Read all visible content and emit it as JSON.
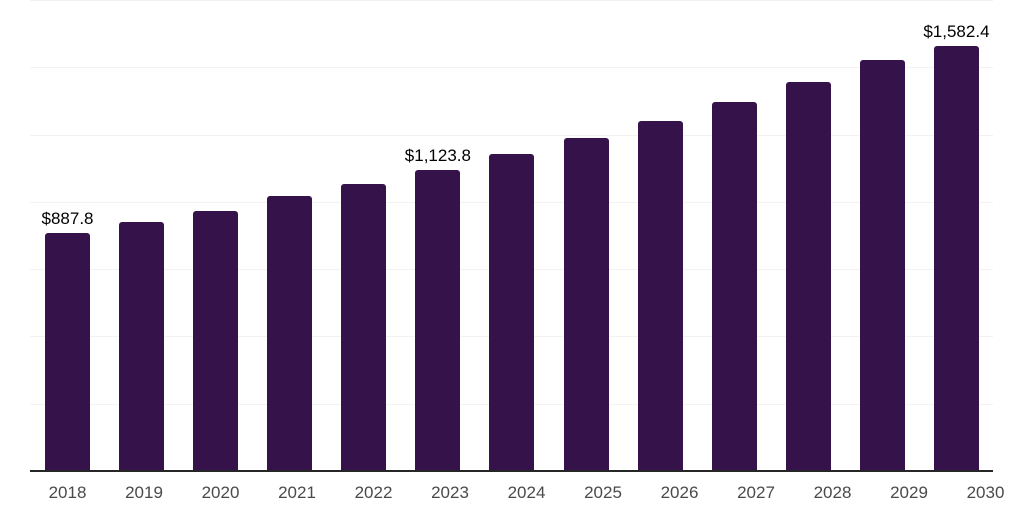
{
  "chart_data": {
    "type": "bar",
    "title": "",
    "xlabel": "",
    "ylabel": "",
    "categories": [
      "2018",
      "2019",
      "2020",
      "2021",
      "2022",
      "2023",
      "2024",
      "2025",
      "2026",
      "2027",
      "2028",
      "2029",
      "2030"
    ],
    "values": [
      887.8,
      930,
      969,
      1024,
      1071,
      1123.8,
      1180,
      1242,
      1306,
      1376,
      1450,
      1532,
      1582.4
    ],
    "value_labels": [
      "$887.8",
      "",
      "",
      "",
      "",
      "$1,123.8",
      "",
      "",
      "",
      "",
      "",
      "",
      "$1,582.4"
    ],
    "ylim": [
      0,
      1750
    ],
    "gridline_step": 250,
    "grid": "horizontal-only",
    "legend": "none",
    "y_tick_labels_visible": false,
    "colors": {
      "bar": "#36124B",
      "gridline": "#F2F2F2",
      "axis_line": "#262626",
      "value_label": "#000000",
      "tick_label": "#4A4A4A",
      "background": "#FFFFFF"
    }
  }
}
